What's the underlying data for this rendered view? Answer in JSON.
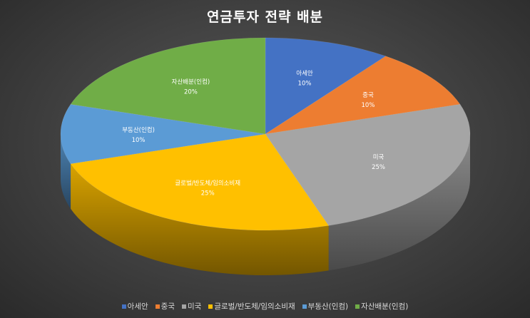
{
  "chart_data": {
    "type": "pie",
    "title": "연금투자 전략 배분",
    "style": "3d-pie",
    "legend_position": "bottom",
    "slices": [
      {
        "name": "아세안",
        "value": 10,
        "label": "10%",
        "color": "#4472C4"
      },
      {
        "name": "중국",
        "value": 10,
        "label": "10%",
        "color": "#ED7D31"
      },
      {
        "name": "미국",
        "value": 25,
        "label": "25%",
        "color": "#A5A5A5"
      },
      {
        "name": "글로벌/반도체/임의소비재",
        "value": 25,
        "label": "25%",
        "color": "#FFC000"
      },
      {
        "name": "부동산(인컴)",
        "value": 10,
        "label": "10%",
        "color": "#5B9BD5"
      },
      {
        "name": "자산배분(인컴)",
        "value": 20,
        "label": "20%",
        "color": "#70AD47"
      }
    ]
  }
}
